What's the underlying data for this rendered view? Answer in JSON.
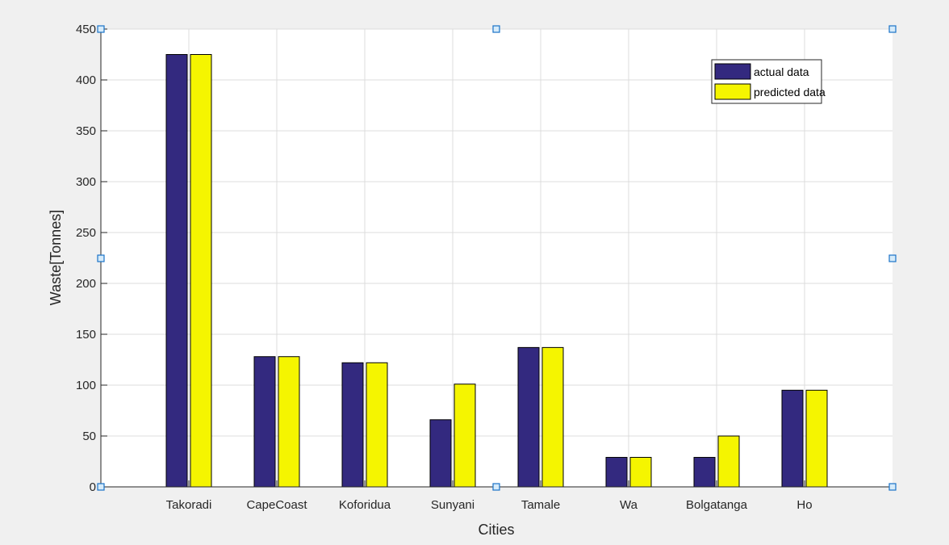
{
  "chart_data": {
    "type": "bar",
    "title": "",
    "xlabel": "Cities",
    "ylabel": "Waste[Tonnes]",
    "categories": [
      "Takoradi",
      "CapeCoast",
      "Koforidua",
      "Sunyani",
      "Tamale",
      "Wa",
      "Bolgatanga",
      "Ho"
    ],
    "ylim": [
      0,
      450
    ],
    "yticks": [
      0,
      50,
      100,
      150,
      200,
      250,
      300,
      350,
      400,
      450
    ],
    "grid": true,
    "legend_position": "top-right",
    "series": [
      {
        "name": "actual data",
        "color": "#33297f",
        "values": [
          425,
          128,
          122,
          66,
          137,
          29,
          29,
          95
        ]
      },
      {
        "name": "predicted data",
        "color": "#f5f500",
        "values": [
          425,
          128,
          122,
          101,
          137,
          29,
          50,
          95
        ]
      }
    ]
  }
}
